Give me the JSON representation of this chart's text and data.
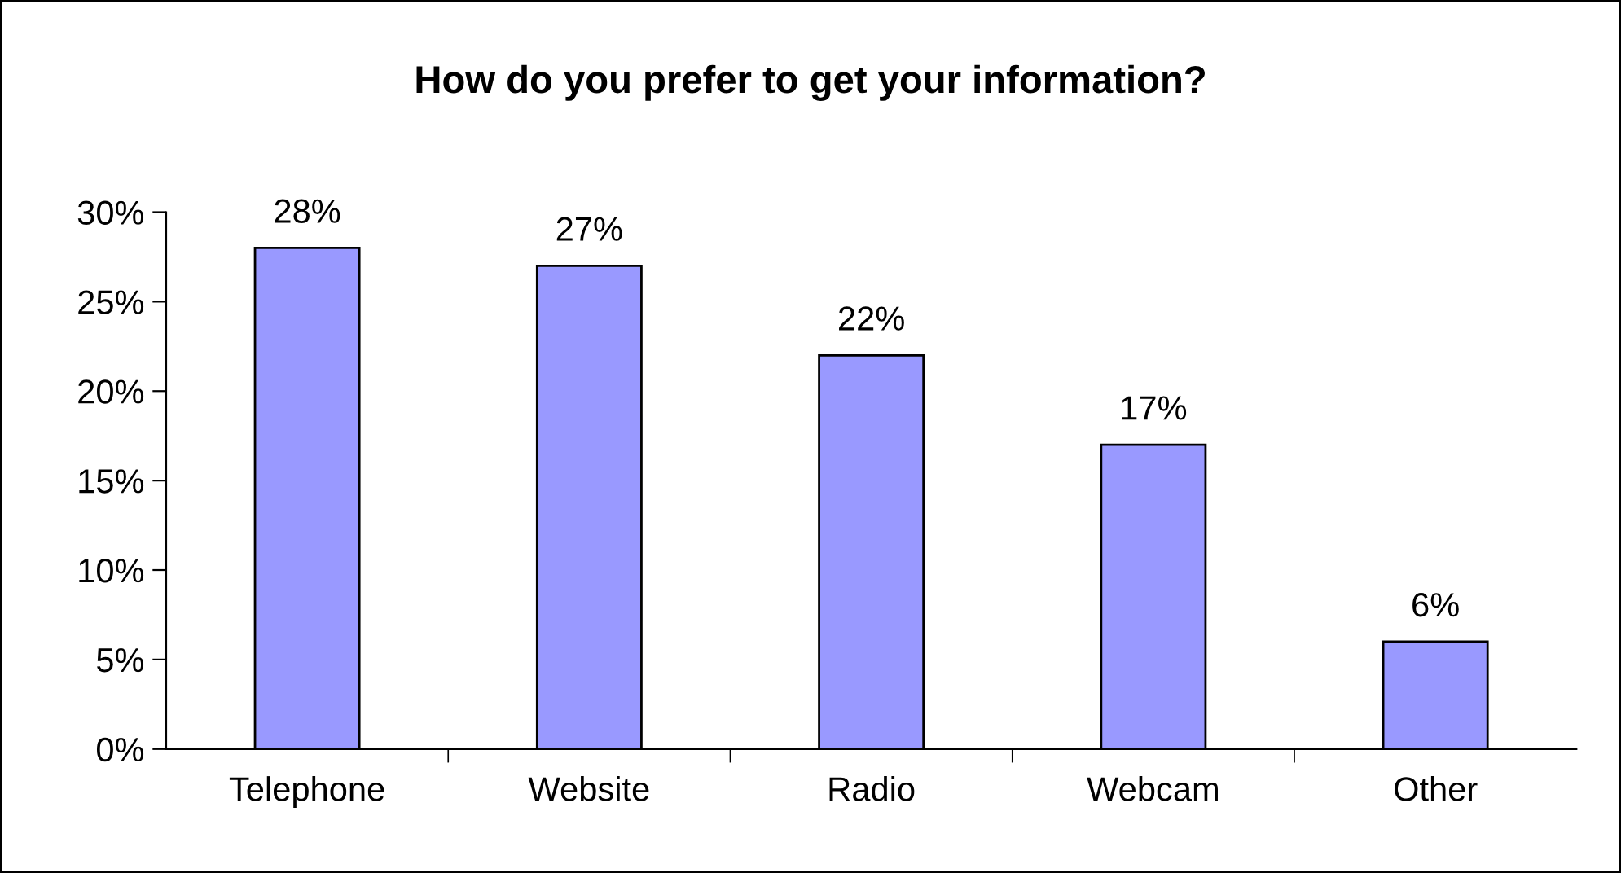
{
  "chart_data": {
    "type": "bar",
    "title": "How do you prefer to get your information?",
    "categories": [
      "Telephone",
      "Website",
      "Radio",
      "Webcam",
      "Other"
    ],
    "values": [
      28,
      27,
      22,
      17,
      6
    ],
    "color": "#9999ff",
    "value_labels": [
      "28%",
      "27%",
      "22%",
      "17%",
      "6%"
    ],
    "ylim": [
      0,
      30
    ],
    "yticks": [
      {
        "value": 0,
        "label": "0%"
      },
      {
        "value": 5,
        "label": "5%"
      },
      {
        "value": 10,
        "label": "10%"
      },
      {
        "value": 15,
        "label": "15%"
      },
      {
        "value": 20,
        "label": "20%"
      },
      {
        "value": 25,
        "label": "25%"
      },
      {
        "value": 30,
        "label": "30%"
      }
    ],
    "grid": false
  }
}
